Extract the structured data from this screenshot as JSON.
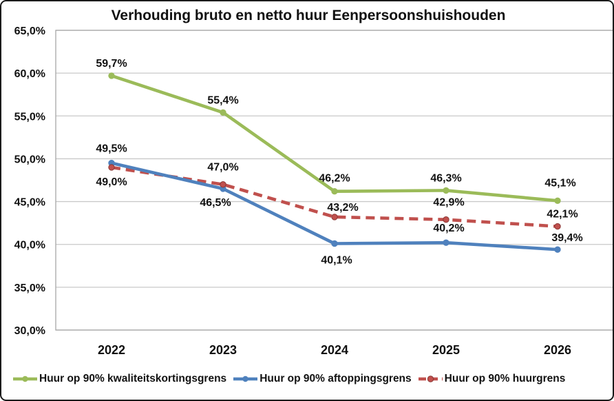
{
  "chart_data": {
    "type": "line",
    "title": "Verhouding bruto en netto huur Eenpersoonshuishouden",
    "categories": [
      "2022",
      "2023",
      "2024",
      "2025",
      "2026"
    ],
    "series": [
      {
        "name": "Huur op 90% kwaliteitskortingsgrens",
        "color": "#9BBB59",
        "line_style": "solid",
        "values": [
          59.7,
          55.4,
          46.2,
          46.3,
          45.1
        ],
        "labels": [
          "59,7%",
          "55,4%",
          "46,2%",
          "46,3%",
          "45,1%"
        ]
      },
      {
        "name": "Huur op 90% aftoppingsgrens",
        "color": "#4F81BD",
        "line_style": "solid",
        "values": [
          49.5,
          46.5,
          40.1,
          40.2,
          39.4
        ],
        "labels": [
          "49,5%",
          "46,5%",
          "40,1%",
          "40,2%",
          "39,4%"
        ]
      },
      {
        "name": "Huur op 90% huurgrens",
        "color": "#C0504D",
        "line_style": "dashed",
        "values": [
          49.0,
          47.0,
          43.2,
          42.9,
          42.1
        ],
        "labels": [
          "49,0%",
          "47,0%",
          "43,2%",
          "42,9%",
          "42,1%"
        ]
      }
    ],
    "y_axis": {
      "min": 30,
      "max": 65,
      "step": 5,
      "tick_labels": [
        "65,0%",
        "60,0%",
        "55,0%",
        "50,0%",
        "45,0%",
        "40,0%",
        "35,0%",
        "30,0%"
      ]
    },
    "x_axis": {
      "tick_labels": [
        "2022",
        "2023",
        "2024",
        "2025",
        "2026"
      ]
    },
    "grid": true,
    "legend_position": "bottom",
    "colors": {
      "gridline": "#c9c9c9",
      "plot_border": "#a6a6a6",
      "text": "#111111",
      "background": "#ffffff"
    }
  }
}
